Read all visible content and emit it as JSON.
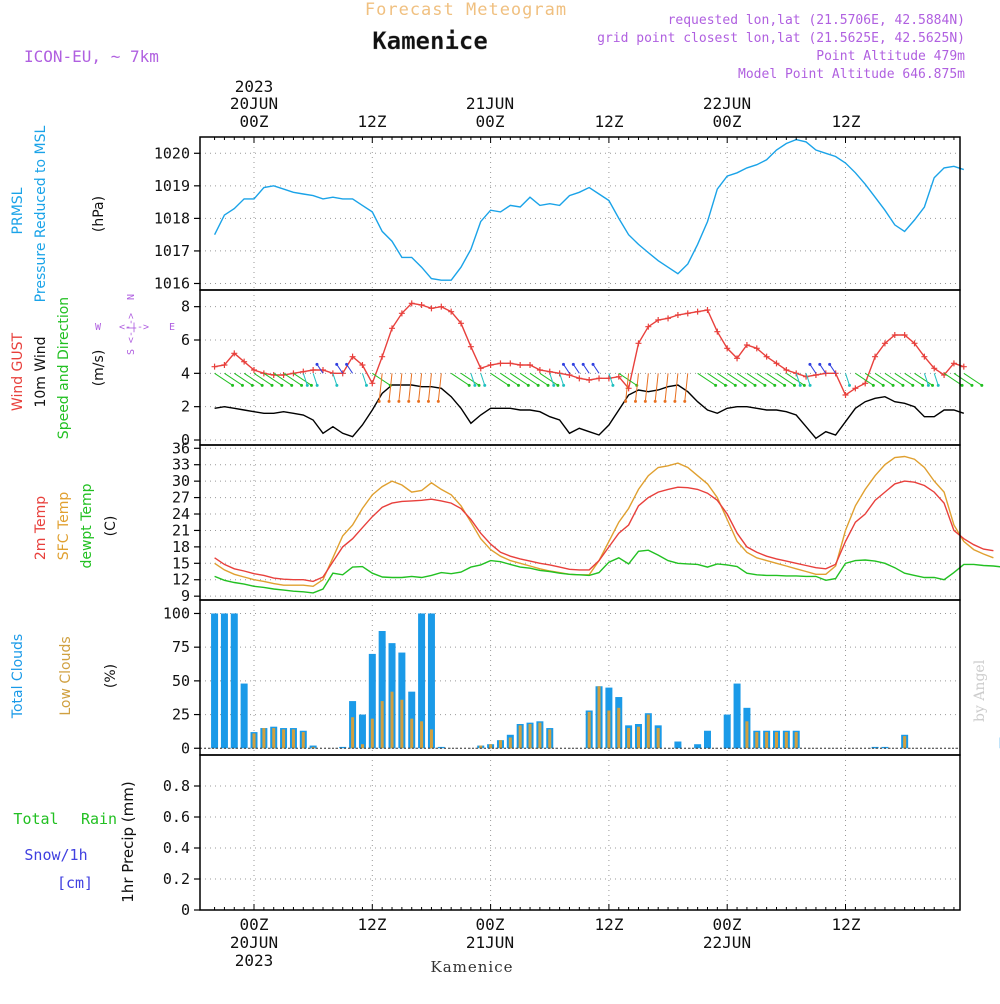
{
  "header": {
    "forecast_title": "Forecast Meteogram",
    "station_name": "Kamenice",
    "model_label": "ICON-EU, ~ 7km",
    "requested": "requested lon,lat (21.5706E, 42.5884N)",
    "grid_point": "grid point closest lon,lat (21.5625E, 42.5625N)",
    "point_altitude": "Point Altitude 479m",
    "model_altitude": "Model Point Altitude 646.875m"
  },
  "top_axis": {
    "year_label": "2023",
    "day_labels": [
      "20JUN",
      "21JUN",
      "22JUN"
    ],
    "time_labels": [
      "00Z",
      "12Z",
      "00Z",
      "12Z",
      "00Z",
      "12Z"
    ]
  },
  "bottom_axis": {
    "time_labels": [
      "00Z",
      "12Z",
      "00Z",
      "12Z",
      "00Z",
      "12Z"
    ],
    "day_labels": [
      "20JUN",
      "21JUN",
      "22JUN"
    ],
    "year_label": "2023",
    "footer_station": "Kamenice"
  },
  "watermark": "by Angel",
  "panel_labels": {
    "pressure": {
      "line1": "PRMSL",
      "line2": "Pressure Reduced to MSL",
      "unit": "(hPa)"
    },
    "wind": {
      "gust": "Wind GUST",
      "wind10": "10m Wind",
      "speed_dir": "Speed and Direction",
      "unit": "(m/s)",
      "compass_w": "W",
      "compass_e": "E",
      "compass_arrow": "<-|->",
      "compass_n": "N",
      "compass_s": "S"
    },
    "temp": {
      "t2m": "2m Temp",
      "sfc": "SFC Temp",
      "dew": "dewpt Temp",
      "unit": "(C)"
    },
    "clouds": {
      "total": "Total Clouds",
      "low": "Low Clouds",
      "unit": "(%)"
    },
    "precip": {
      "total": "Total",
      "rain": "Rain",
      "snow": "Snow/1h",
      "snow_unit": "[cm]",
      "axis": "1hr Precip (mm)"
    }
  },
  "colors": {
    "pressure": "#1aa3e8",
    "gust": "#e8403c",
    "wind": "#000000",
    "t2m": "#e8403c",
    "sfc": "#e0a030",
    "dew": "#22c022",
    "total_clouds": "#1a9ae8",
    "low_clouds": "#d0a040",
    "rain": "#22c022",
    "snow": "#4040e0",
    "label_purple": "#b060e0",
    "title_orange": "#f0c080"
  },
  "chart_data": [
    {
      "type": "line",
      "title": "PRMSL Pressure Reduced to MSL",
      "ylabel": "(hPa)",
      "ylim": [
        1015.8,
        1020.5
      ],
      "yticks": [
        1016,
        1017,
        1018,
        1019,
        1020
      ],
      "x_hours_start": -4,
      "x_hours_step": 1,
      "series": [
        {
          "name": "PRMSL",
          "values": [
            1017.5,
            1018.1,
            1018.3,
            1018.6,
            1018.6,
            1018.95,
            1019.0,
            1018.9,
            1018.8,
            1018.75,
            1018.7,
            1018.6,
            1018.65,
            1018.6,
            1018.6,
            1018.4,
            1018.2,
            1017.6,
            1017.3,
            1016.8,
            1016.8,
            1016.5,
            1016.15,
            1016.1,
            1016.1,
            1016.5,
            1017.05,
            1017.9,
            1018.25,
            1018.2,
            1018.4,
            1018.35,
            1018.65,
            1018.4,
            1018.45,
            1018.4,
            1018.7,
            1018.8,
            1018.95,
            1018.75,
            1018.55,
            1018.0,
            1017.5,
            1017.2,
            1016.95,
            1016.7,
            1016.5,
            1016.3,
            1016.6,
            1017.2,
            1017.9,
            1018.9,
            1019.3,
            1019.4,
            1019.55,
            1019.65,
            1019.8,
            1020.1,
            1020.3,
            1020.42,
            1020.35,
            1020.1,
            1020.0,
            1019.9,
            1019.7,
            1019.4,
            1019.05,
            1018.65,
            1018.25,
            1017.8,
            1017.6,
            1017.95,
            1018.35,
            1019.25,
            1019.55,
            1019.6,
            1019.5
          ]
        }
      ]
    },
    {
      "type": "line",
      "title": "Wind GUST / 10m Wind Speed and Direction",
      "ylabel": "(m/s)",
      "ylim": [
        -0.3,
        9
      ],
      "yticks": [
        0,
        2,
        4,
        6,
        8
      ],
      "x_hours_start": -4,
      "x_hours_step": 1,
      "series": [
        {
          "name": "Wind GUST",
          "values": [
            4.4,
            4.5,
            5.2,
            4.7,
            4.2,
            4.0,
            3.9,
            3.9,
            4.0,
            4.1,
            4.2,
            4.2,
            4.0,
            4.0,
            5.0,
            4.5,
            3.4,
            5.0,
            6.7,
            7.6,
            8.2,
            8.1,
            7.9,
            8.0,
            7.7,
            7.0,
            5.6,
            4.3,
            4.5,
            4.6,
            4.6,
            4.5,
            4.5,
            4.2,
            4.1,
            4.0,
            3.9,
            3.7,
            3.6,
            3.7,
            3.7,
            3.8,
            3.1,
            5.8,
            6.8,
            7.2,
            7.3,
            7.5,
            7.6,
            7.7,
            7.8,
            6.5,
            5.5,
            4.9,
            5.7,
            5.5,
            5.0,
            4.6,
            4.2,
            4.0,
            3.8,
            3.9,
            4.0,
            4.0,
            2.7,
            3.1,
            3.4,
            5.0,
            5.8,
            6.3,
            6.3,
            5.8,
            5.0,
            4.3,
            3.9,
            4.6,
            4.4
          ]
        },
        {
          "name": "10m Wind",
          "values": [
            1.9,
            2.0,
            1.9,
            1.8,
            1.7,
            1.6,
            1.6,
            1.7,
            1.6,
            1.5,
            1.2,
            0.4,
            0.8,
            0.4,
            0.2,
            0.9,
            1.8,
            2.8,
            3.3,
            3.3,
            3.3,
            3.2,
            3.2,
            3.1,
            2.6,
            1.9,
            1.0,
            1.5,
            1.9,
            1.9,
            1.9,
            1.8,
            1.8,
            1.7,
            1.4,
            1.2,
            0.4,
            0.7,
            0.5,
            0.3,
            0.9,
            1.8,
            2.7,
            3.0,
            2.9,
            3.0,
            3.2,
            3.3,
            2.9,
            2.3,
            1.8,
            1.6,
            1.9,
            2.0,
            2.0,
            1.9,
            1.8,
            1.8,
            1.7,
            1.5,
            0.8,
            0.1,
            0.5,
            0.3,
            1.1,
            1.9,
            2.3,
            2.5,
            2.6,
            2.3,
            2.2,
            2.0,
            1.4,
            1.4,
            1.8,
            1.8,
            1.6
          ]
        }
      ]
    },
    {
      "type": "line",
      "title": "2m Temp / SFC Temp / dewpt Temp",
      "ylabel": "(C)",
      "ylim": [
        8.3,
        36.6
      ],
      "yticks": [
        9,
        12,
        15,
        18,
        21,
        24,
        27,
        30,
        33,
        36
      ],
      "x_hours_start": -4,
      "x_hours_step": 1,
      "series": [
        {
          "name": "2m Temp",
          "values": [
            16.0,
            14.8,
            14.0,
            13.6,
            13.1,
            12.8,
            12.3,
            12.1,
            12.0,
            12.0,
            11.7,
            12.5,
            15.3,
            18.0,
            19.5,
            21.5,
            23.5,
            25.2,
            26.0,
            26.3,
            26.4,
            26.5,
            26.7,
            26.4,
            26.0,
            25.0,
            23.0,
            20.5,
            18.5,
            17.0,
            16.3,
            15.8,
            15.4,
            15.0,
            14.7,
            14.3,
            13.9,
            13.8,
            13.8,
            15.5,
            18.0,
            20.5,
            22.0,
            25.5,
            27.0,
            28.0,
            28.5,
            28.9,
            28.8,
            28.5,
            27.8,
            26.5,
            24.0,
            20.5,
            18.0,
            17.0,
            16.3,
            15.8,
            15.4,
            15.0,
            14.6,
            14.2,
            14.0,
            14.8,
            19.0,
            22.5,
            24.0,
            26.5,
            28.0,
            29.5,
            30.0,
            29.8,
            29.2,
            28.0,
            26.0,
            21.0,
            19.5,
            18.4,
            17.6,
            17.3
          ]
        },
        {
          "name": "SFC Temp",
          "values": [
            15.0,
            13.8,
            13.0,
            12.5,
            12.0,
            11.7,
            11.3,
            11.0,
            11.0,
            11.0,
            10.8,
            12.0,
            16.0,
            20.0,
            22.0,
            25.0,
            27.5,
            29.0,
            30.0,
            29.3,
            28.0,
            28.3,
            29.7,
            28.5,
            27.5,
            25.5,
            22.5,
            19.5,
            17.5,
            16.3,
            15.5,
            15.0,
            14.5,
            14.0,
            13.6,
            13.3,
            13.0,
            12.9,
            12.9,
            15.5,
            19.0,
            22.5,
            25.0,
            28.5,
            31.0,
            32.5,
            32.8,
            33.3,
            32.5,
            31.0,
            29.5,
            27.0,
            23.0,
            19.0,
            17.0,
            16.0,
            15.5,
            15.0,
            14.5,
            14.0,
            13.5,
            13.0,
            13.0,
            14.5,
            21.0,
            25.5,
            28.5,
            31.0,
            33.0,
            34.3,
            34.5,
            34.0,
            32.5,
            30.0,
            28.0,
            22.0,
            19.0,
            17.5,
            16.7,
            16.0
          ]
        },
        {
          "name": "dewpt Temp",
          "values": [
            12.6,
            11.9,
            11.5,
            11.2,
            10.8,
            10.6,
            10.3,
            10.1,
            9.9,
            9.8,
            9.6,
            10.3,
            13.2,
            12.9,
            14.3,
            14.4,
            13.2,
            12.5,
            12.4,
            12.4,
            12.6,
            12.4,
            12.8,
            13.3,
            13.1,
            13.4,
            14.3,
            14.7,
            15.5,
            15.3,
            14.8,
            14.3,
            14.1,
            13.7,
            13.5,
            13.2,
            13.0,
            12.9,
            12.8,
            13.3,
            15.2,
            16.0,
            14.9,
            17.2,
            17.4,
            16.5,
            15.5,
            15.0,
            14.9,
            14.8,
            14.3,
            14.9,
            14.7,
            14.4,
            13.2,
            12.9,
            12.8,
            12.8,
            12.7,
            12.7,
            12.6,
            12.6,
            11.9,
            12.2,
            15.0,
            15.5,
            15.6,
            15.4,
            15.0,
            14.2,
            13.2,
            12.8,
            12.4,
            12.4,
            12.0,
            13.3,
            14.8,
            14.8,
            14.6,
            14.5,
            14.3
          ]
        }
      ]
    },
    {
      "type": "bar",
      "title": "Total Clouds / Low Clouds",
      "ylabel": "(%)",
      "ylim": [
        -5,
        110
      ],
      "yticks": [
        0,
        25,
        50,
        75,
        100
      ],
      "x_hours_start": -4,
      "x_hours_step": 1,
      "series": [
        {
          "name": "Total Clouds",
          "values": [
            100,
            100,
            100,
            48,
            12,
            15,
            16,
            15,
            15,
            13,
            2,
            0,
            0,
            1,
            35,
            25,
            70,
            87,
            78,
            71,
            42,
            100,
            100,
            1,
            0,
            0,
            0,
            2,
            3,
            6,
            10,
            18,
            19,
            20,
            15,
            0,
            0,
            0,
            28,
            46,
            45,
            38,
            17,
            18,
            26,
            17,
            0,
            5,
            0,
            3,
            13,
            0,
            25,
            48,
            30,
            13,
            13,
            13,
            13,
            13,
            0,
            0,
            0,
            0,
            0,
            0,
            0,
            1,
            1,
            0,
            10,
            0,
            0,
            0,
            0,
            0,
            0,
            0,
            0,
            0,
            8
          ]
        },
        {
          "name": "Low Clouds",
          "values": [
            0,
            0,
            0,
            0,
            11,
            15,
            15,
            14,
            14,
            12,
            1,
            0,
            0,
            0,
            23,
            3,
            22,
            35,
            42,
            36,
            22,
            20,
            14,
            0,
            0,
            0,
            0,
            2,
            3,
            6,
            8,
            17,
            18,
            19,
            14,
            0,
            0,
            0,
            27,
            46,
            28,
            30,
            15,
            16,
            25,
            15,
            0,
            0,
            0,
            0,
            0,
            0,
            0,
            0,
            20,
            12,
            12,
            12,
            12,
            12,
            0,
            0,
            0,
            0,
            0,
            0,
            0,
            0,
            0,
            0,
            9,
            0,
            0,
            0,
            0,
            0,
            0,
            0,
            0,
            0,
            0
          ]
        }
      ]
    },
    {
      "type": "bar",
      "title": "Total Rain Snow/1h",
      "ylabel": "1hr Precip (mm)",
      "ylim": [
        0,
        1.0
      ],
      "yticks": [
        0,
        0.2,
        0.4,
        0.6,
        0.8
      ],
      "series": [
        {
          "name": "Total Rain",
          "values": []
        },
        {
          "name": "Snow/1h [cm]",
          "values": []
        }
      ]
    }
  ]
}
